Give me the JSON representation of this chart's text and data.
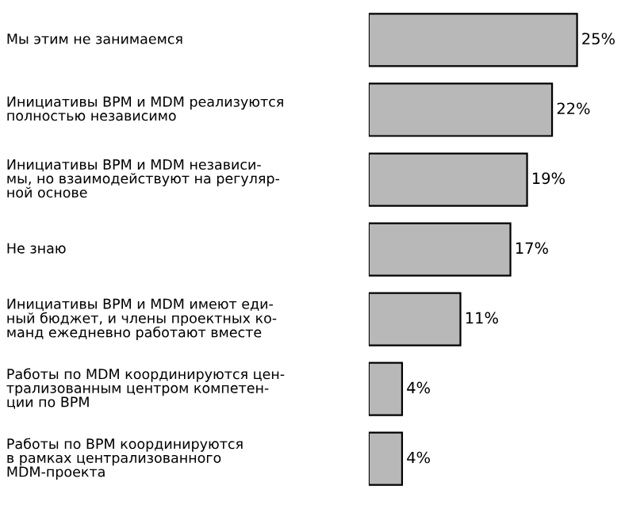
{
  "chart_data": {
    "type": "bar",
    "orientation": "horizontal",
    "categories": [
      "Мы этим не занимаемся",
      "Инициативы BPM и MDM реализуются\nполностью независимо",
      "Инициативы BPM и MDM независи-\nмы, но взаимодействуют на регуляр-\nной основе",
      "Не знаю",
      "Инициативы BPM и MDM имеют еди-\nный бюджет, и члены проектных ко-\nманд ежедневно работают вместе",
      "Работы по MDM координируются цен-\nтрализованным центром компетен-\nции по BPM",
      "Работы по BPM координируются\nв рамках централизованного\nMDM-проекта"
    ],
    "values": [
      25,
      22,
      19,
      17,
      11,
      4,
      4
    ],
    "value_labels": [
      "25%",
      "22%",
      "19%",
      "17%",
      "11%",
      "4%",
      "4%"
    ],
    "color": "#b8b8b8"
  }
}
